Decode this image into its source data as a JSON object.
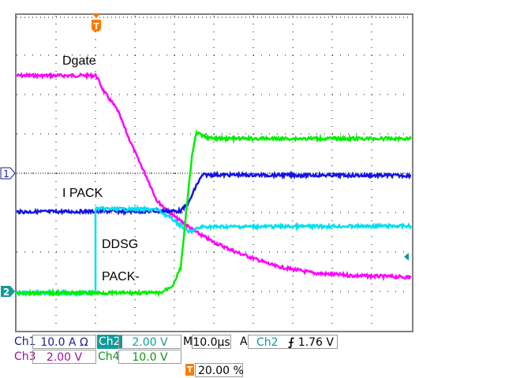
{
  "chart_data": {
    "type": "line",
    "title": "",
    "xlabel": "",
    "ylabel": "",
    "x_unit": "µs",
    "y_unit": "div",
    "xlim": [
      -20,
      80
    ],
    "ylim": [
      -4,
      4
    ],
    "grid": true,
    "x_divisions": 10,
    "y_divisions": 8,
    "trigger_position_percent": 20,
    "series": [
      {
        "name": "Dgate",
        "color": "#ff00ff",
        "x": [
          -20,
          0.2,
          2,
          5.6,
          8,
          10.6,
          13,
          15.6,
          20,
          25.6,
          30,
          35.6,
          45.6,
          55.6,
          65.6,
          80
        ],
        "y": [
          2.48,
          2.48,
          2.1,
          1.6,
          1.0,
          0.4,
          -0.1,
          -0.7,
          -1.1,
          -1.5,
          -1.75,
          -2.0,
          -2.36,
          -2.54,
          -2.6,
          -2.64
        ]
      },
      {
        "name": "I PACK",
        "color": "#1414e6",
        "x": [
          -20,
          21.6,
          23.6,
          25.6,
          27.2,
          80
        ],
        "y": [
          -0.98,
          -0.96,
          -0.76,
          -0.3,
          -0.04,
          -0.06
        ]
      },
      {
        "name": "DDSG",
        "color": "#00e0ee",
        "x": [
          -20,
          0,
          0,
          15.6,
          20,
          23.6,
          27,
          80
        ],
        "y": [
          -3.04,
          -3.04,
          -0.9,
          -0.92,
          -1.2,
          -1.5,
          -1.36,
          -1.34
        ]
      },
      {
        "name": "PACK-",
        "color": "#00ee00",
        "x": [
          -20,
          16.6,
          19.6,
          21.6,
          23.2,
          24.4,
          25.6,
          26.8,
          29.6,
          80
        ],
        "y": [
          -3.04,
          -3.04,
          -2.84,
          -2.4,
          -0.8,
          0.4,
          1.04,
          0.96,
          0.88,
          0.88
        ]
      }
    ]
  },
  "trace_labels": {
    "dgate": "Dgate",
    "ipack": "I PACK",
    "ddsg": "DDSG",
    "pack": "PACK-"
  },
  "markers": {
    "ch1": "1",
    "ch2": "2",
    "trigger": "T"
  },
  "status": {
    "ch1_label": "Ch1",
    "ch1_scale": "10.0 A Ω",
    "ch2_label": "Ch2",
    "ch2_scale": "2.00 V",
    "ch3_label": "Ch3",
    "ch3_scale": "2.00 V",
    "ch4_label": "Ch4",
    "ch4_scale": "10.0 V",
    "timebase_label": "M",
    "timebase": "10.0µs",
    "acq_label": "A",
    "trigger_source": "Ch2",
    "trigger_slope_icon": "rising-edge-icon",
    "trigger_level": "1.76 V",
    "trigger_position": "20.00 %"
  },
  "colors": {
    "ch1": "#1a1a9a",
    "ch2": "#139a9a",
    "ch3": "#9a139a",
    "ch4": "#13901a",
    "trigger": "#ff7a00"
  }
}
